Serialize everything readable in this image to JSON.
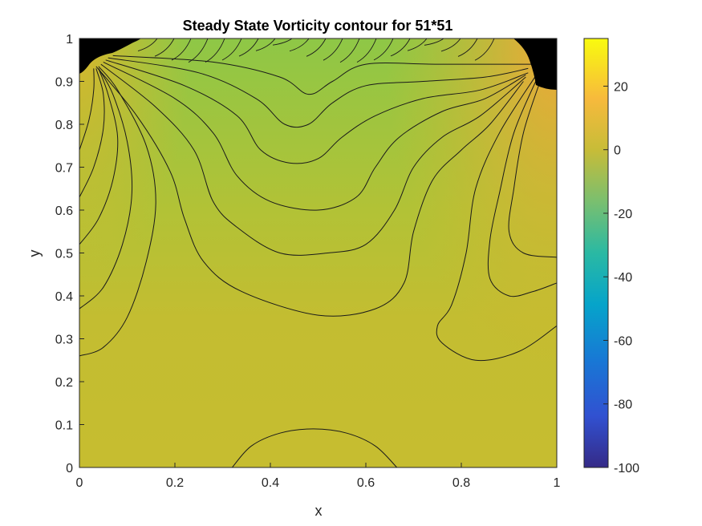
{
  "chart_data": {
    "type": "heatmap",
    "subtype": "filled-contour",
    "title": "Steady State Vorticity contour for 51*51",
    "xlabel": "x",
    "ylabel": "y",
    "xlim": [
      0,
      1
    ],
    "ylim": [
      0,
      1
    ],
    "x_ticks": [
      "0",
      "0.2",
      "0.4",
      "0.6",
      "0.8",
      "1"
    ],
    "y_ticks": [
      "0",
      "0.1",
      "0.2",
      "0.3",
      "0.4",
      "0.5",
      "0.6",
      "0.7",
      "0.8",
      "0.9",
      "1"
    ],
    "colorbar": {
      "colormap": "parula",
      "range": [
        -100,
        35
      ],
      "ticks": [
        "-100",
        "-80",
        "-60",
        "-40",
        "-20",
        "0",
        "20"
      ]
    },
    "grid": false,
    "contour_lines": [
      {
        "level": 2,
        "points": [
          [
            0.32,
            0
          ],
          [
            0.36,
            0.05
          ],
          [
            0.42,
            0.08
          ],
          [
            0.49,
            0.09
          ],
          [
            0.56,
            0.08
          ],
          [
            0.62,
            0.05
          ],
          [
            0.665,
            0
          ]
        ]
      },
      {
        "level": 3,
        "points": [
          [
            0,
            0.26
          ],
          [
            0.05,
            0.28
          ],
          [
            0.1,
            0.35
          ],
          [
            0.14,
            0.48
          ],
          [
            0.16,
            0.62
          ],
          [
            0.14,
            0.75
          ],
          [
            0.08,
            0.88
          ],
          [
            0.04,
            0.935
          ]
        ]
      },
      {
        "level": 4,
        "points": [
          [
            0,
            0.37
          ],
          [
            0.05,
            0.42
          ],
          [
            0.09,
            0.52
          ],
          [
            0.11,
            0.64
          ],
          [
            0.1,
            0.76
          ],
          [
            0.07,
            0.87
          ],
          [
            0.04,
            0.93
          ]
        ]
      },
      {
        "level": 5,
        "points": [
          [
            0,
            0.52
          ],
          [
            0.04,
            0.58
          ],
          [
            0.07,
            0.67
          ],
          [
            0.08,
            0.77
          ],
          [
            0.06,
            0.87
          ],
          [
            0.04,
            0.93
          ]
        ]
      },
      {
        "level": 6,
        "points": [
          [
            0,
            0.63
          ],
          [
            0.03,
            0.7
          ],
          [
            0.05,
            0.79
          ],
          [
            0.05,
            0.87
          ],
          [
            0.035,
            0.93
          ]
        ]
      },
      {
        "level": 7,
        "points": [
          [
            0,
            0.74
          ],
          [
            0.02,
            0.81
          ],
          [
            0.03,
            0.88
          ],
          [
            0.03,
            0.93
          ]
        ]
      },
      {
        "level": 1,
        "points": [
          [
            0.035,
            0.935
          ],
          [
            0.12,
            0.82
          ],
          [
            0.19,
            0.69
          ],
          [
            0.22,
            0.58
          ],
          [
            0.26,
            0.48
          ],
          [
            0.34,
            0.41
          ],
          [
            0.5,
            0.355
          ],
          [
            0.62,
            0.37
          ],
          [
            0.68,
            0.43
          ],
          [
            0.7,
            0.55
          ],
          [
            0.74,
            0.67
          ],
          [
            0.8,
            0.74
          ],
          [
            0.86,
            0.8
          ],
          [
            0.93,
            0.9
          ]
        ]
      },
      {
        "level": 2,
        "points": [
          [
            0.96,
            0.92
          ],
          [
            0.88,
            0.78
          ],
          [
            0.83,
            0.65
          ],
          [
            0.81,
            0.5
          ],
          [
            0.78,
            0.38
          ],
          [
            0.75,
            0.33
          ],
          [
            0.76,
            0.29
          ],
          [
            0.83,
            0.25
          ],
          [
            0.92,
            0.27
          ],
          [
            1,
            0.33
          ]
        ]
      },
      {
        "level": 3,
        "points": [
          [
            0.96,
            0.91
          ],
          [
            0.91,
            0.78
          ],
          [
            0.88,
            0.64
          ],
          [
            0.86,
            0.53
          ],
          [
            0.86,
            0.44
          ],
          [
            0.9,
            0.4
          ],
          [
            0.95,
            0.41
          ],
          [
            1,
            0.43
          ]
        ]
      },
      {
        "level": 4,
        "points": [
          [
            0.965,
            0.9
          ],
          [
            0.93,
            0.78
          ],
          [
            0.91,
            0.65
          ],
          [
            0.9,
            0.55
          ],
          [
            0.93,
            0.5
          ],
          [
            1,
            0.49
          ]
        ]
      },
      {
        "level": 0,
        "points": [
          [
            0.045,
            0.94
          ],
          [
            0.16,
            0.84
          ],
          [
            0.24,
            0.74
          ],
          [
            0.28,
            0.62
          ],
          [
            0.33,
            0.56
          ],
          [
            0.42,
            0.5
          ],
          [
            0.52,
            0.5
          ],
          [
            0.6,
            0.52
          ],
          [
            0.66,
            0.6
          ],
          [
            0.7,
            0.7
          ],
          [
            0.76,
            0.77
          ],
          [
            0.84,
            0.82
          ],
          [
            0.935,
            0.91
          ]
        ]
      },
      {
        "level": -1,
        "points": [
          [
            0.05,
            0.945
          ],
          [
            0.2,
            0.86
          ],
          [
            0.28,
            0.78
          ],
          [
            0.33,
            0.68
          ],
          [
            0.4,
            0.62
          ],
          [
            0.5,
            0.6
          ],
          [
            0.58,
            0.63
          ],
          [
            0.62,
            0.7
          ],
          [
            0.67,
            0.77
          ],
          [
            0.76,
            0.83
          ],
          [
            0.85,
            0.86
          ],
          [
            0.935,
            0.915
          ]
        ]
      },
      {
        "level": -2,
        "points": [
          [
            0.055,
            0.95
          ],
          [
            0.22,
            0.89
          ],
          [
            0.33,
            0.82
          ],
          [
            0.38,
            0.74
          ],
          [
            0.44,
            0.71
          ],
          [
            0.5,
            0.72
          ],
          [
            0.55,
            0.77
          ],
          [
            0.62,
            0.82
          ],
          [
            0.72,
            0.86
          ],
          [
            0.84,
            0.88
          ],
          [
            0.94,
            0.92
          ]
        ]
      },
      {
        "level": -3,
        "points": [
          [
            0.06,
            0.955
          ],
          [
            0.25,
            0.92
          ],
          [
            0.37,
            0.86
          ],
          [
            0.43,
            0.8
          ],
          [
            0.48,
            0.8
          ],
          [
            0.53,
            0.85
          ],
          [
            0.6,
            0.89
          ],
          [
            0.72,
            0.9
          ],
          [
            0.85,
            0.91
          ],
          [
            0.94,
            0.93
          ]
        ]
      },
      {
        "level": -4,
        "points": [
          [
            0.07,
            0.96
          ],
          [
            0.28,
            0.945
          ],
          [
            0.42,
            0.91
          ],
          [
            0.48,
            0.87
          ],
          [
            0.53,
            0.9
          ],
          [
            0.6,
            0.94
          ],
          [
            0.75,
            0.94
          ],
          [
            0.95,
            0.94
          ]
        ]
      }
    ]
  }
}
